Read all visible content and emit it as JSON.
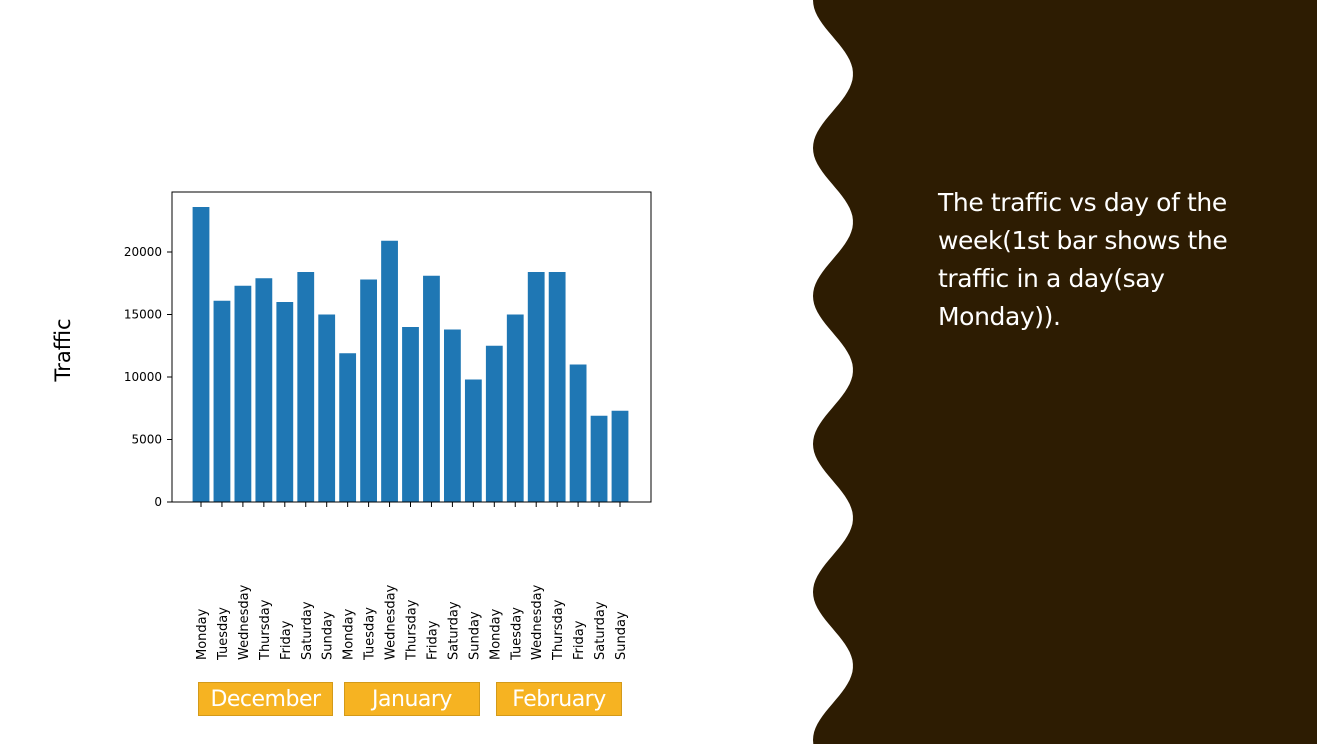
{
  "slide": {
    "description_text": "The traffic vs day of the week(1st bar shows the traffic in a day(say Monday)).",
    "panel_color": "#2d1c02"
  },
  "months": [
    "December",
    "January",
    "February"
  ],
  "month_box_color": "#f6b322",
  "chart_data": {
    "type": "bar",
    "ylabel": "Traffic",
    "xlabel": "",
    "categories": [
      "Monday",
      "Tuesday",
      "Wednesday",
      "Thursday",
      "Friday",
      "Saturday",
      "Sunday",
      "Monday",
      "Tuesday",
      "Wednesday",
      "Thursday",
      "Friday",
      "Saturday",
      "Sunday",
      "Monday",
      "Tuesday",
      "Wednesday",
      "Thursday",
      "Friday",
      "Saturday",
      "Sunday"
    ],
    "values": [
      23600,
      16100,
      17300,
      17900,
      16000,
      18400,
      15000,
      11900,
      17800,
      20900,
      14000,
      18100,
      13800,
      9800,
      12500,
      15000,
      18400,
      18400,
      11000,
      6900,
      7300
    ],
    "ylim": [
      0,
      24800
    ],
    "yticks": [
      0,
      5000,
      10000,
      15000,
      20000
    ],
    "bar_color": "#1f77b4",
    "grid": false,
    "legend": "none"
  }
}
